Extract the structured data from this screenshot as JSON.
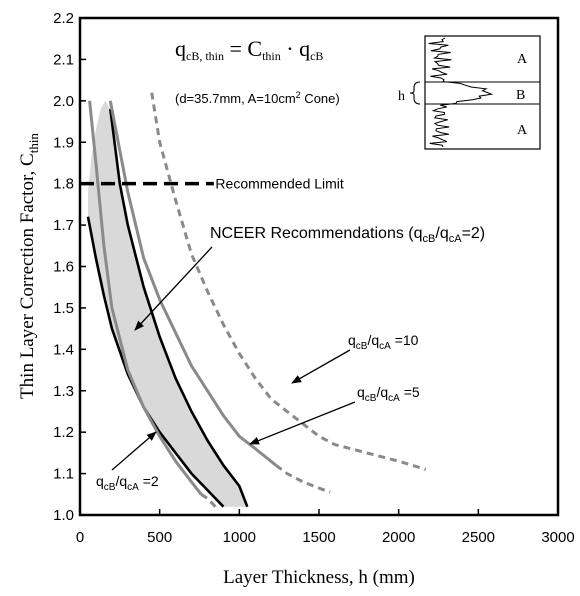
{
  "chart_data": {
    "type": "line",
    "xlabel": "Layer Thickness, h (mm)",
    "ylabel": {
      "main": "Thin Layer Correction Factor, C",
      "sub": "thin"
    },
    "xlim": [
      0,
      3000
    ],
    "ylim": [
      1.0,
      2.2
    ],
    "x_ticks": [
      "0",
      "500",
      "1000",
      "1500",
      "2000",
      "2500",
      "3000"
    ],
    "y_ticks": [
      "1.0",
      "1.1",
      "1.2",
      "1.3",
      "1.4",
      "1.5",
      "1.6",
      "1.7",
      "1.8",
      "1.9",
      "2.0",
      "2.1",
      "2.2"
    ],
    "grid": false,
    "equation": {
      "lhs": "q",
      "lhs_sub": "cB, thin",
      "eq": " = C",
      "c_sub": "thin",
      "dot": " · q",
      "rhs_sub": "cB"
    },
    "conditions": {
      "pre": "(d=35.7mm, A=10cm",
      "sup": "2",
      "post": " Cone)"
    },
    "inset": {
      "layer_top": "A",
      "layer_mid": "B",
      "layer_bottom": "A",
      "h_label": "h"
    },
    "recommended_limit": {
      "y": 1.8,
      "label": "Recommended Limit"
    },
    "nceer_label": "NCEER Recommendations (q",
    "nceer_sub1": "cB",
    "nceer_mid": "/q",
    "nceer_sub2": "cA",
    "nceer_post": "=2)",
    "series": [
      {
        "key": "r2_lower",
        "color": "#000000",
        "dashed": false,
        "points": [
          [
            50,
            1.72
          ],
          [
            100,
            1.62
          ],
          [
            150,
            1.53
          ],
          [
            200,
            1.45
          ],
          [
            300,
            1.34
          ],
          [
            400,
            1.26
          ],
          [
            500,
            1.2
          ],
          [
            600,
            1.15
          ],
          [
            700,
            1.1
          ],
          [
            800,
            1.06
          ],
          [
            900,
            1.02
          ]
        ]
      },
      {
        "key": "r2_upper",
        "color": "#000000",
        "dashed": false,
        "points": [
          [
            190,
            1.98
          ],
          [
            250,
            1.8
          ],
          [
            300,
            1.7
          ],
          [
            400,
            1.55
          ],
          [
            500,
            1.43
          ],
          [
            600,
            1.33
          ],
          [
            700,
            1.25
          ],
          [
            800,
            1.18
          ],
          [
            900,
            1.12
          ],
          [
            1000,
            1.07
          ],
          [
            1050,
            1.02
          ]
        ]
      },
      {
        "key": "r2_gray",
        "color": "#8a8a8a",
        "dashed": false,
        "points": [
          [
            60,
            2.0
          ],
          [
            100,
            1.85
          ],
          [
            150,
            1.65
          ],
          [
            200,
            1.5
          ],
          [
            300,
            1.35
          ],
          [
            400,
            1.26
          ],
          [
            500,
            1.19
          ],
          [
            600,
            1.13
          ],
          [
            700,
            1.08
          ],
          [
            760,
            1.05
          ]
        ]
      },
      {
        "key": "r5",
        "color": "#8a8a8a",
        "dashed": false,
        "points": [
          [
            190,
            2.0
          ],
          [
            250,
            1.88
          ],
          [
            300,
            1.78
          ],
          [
            400,
            1.62
          ],
          [
            500,
            1.52
          ],
          [
            600,
            1.44
          ],
          [
            700,
            1.36
          ],
          [
            800,
            1.3
          ],
          [
            900,
            1.24
          ],
          [
            1000,
            1.19
          ],
          [
            1100,
            1.16
          ],
          [
            1230,
            1.12
          ]
        ]
      },
      {
        "key": "r10",
        "color": "#8a8a8a",
        "dashed": true,
        "points": [
          [
            450,
            2.02
          ],
          [
            500,
            1.9
          ],
          [
            600,
            1.76
          ],
          [
            700,
            1.63
          ],
          [
            800,
            1.54
          ],
          [
            900,
            1.46
          ],
          [
            1000,
            1.39
          ],
          [
            1100,
            1.33
          ],
          [
            1200,
            1.28
          ],
          [
            1300,
            1.25
          ],
          [
            1400,
            1.22
          ],
          [
            1500,
            1.19
          ],
          [
            1600,
            1.17
          ],
          [
            1800,
            1.15
          ],
          [
            2000,
            1.13
          ],
          [
            2170,
            1.11
          ]
        ]
      },
      {
        "key": "r5_dashed_tail",
        "color": "#8a8a8a",
        "dashed": true,
        "points": [
          [
            1230,
            1.12
          ],
          [
            1300,
            1.1
          ],
          [
            1400,
            1.08
          ],
          [
            1500,
            1.065
          ],
          [
            1570,
            1.055
          ]
        ]
      },
      {
        "key": "r2_dashed_tail",
        "color": "#8a8a8a",
        "dashed": true,
        "points": [
          [
            760,
            1.05
          ],
          [
            800,
            1.04
          ],
          [
            850,
            1.02
          ]
        ]
      }
    ],
    "shaded_band": {
      "color": "#d9d9d9",
      "upper": [
        [
          50,
          1.78
        ],
        [
          70,
          1.86
        ],
        [
          100,
          1.93
        ],
        [
          130,
          1.98
        ],
        [
          160,
          2.0
        ],
        [
          190,
          1.98
        ],
        [
          250,
          1.8
        ],
        [
          300,
          1.7
        ],
        [
          400,
          1.55
        ],
        [
          500,
          1.43
        ],
        [
          600,
          1.33
        ],
        [
          700,
          1.25
        ],
        [
          800,
          1.18
        ],
        [
          900,
          1.12
        ],
        [
          1000,
          1.07
        ],
        [
          1050,
          1.02
        ]
      ],
      "lower": [
        [
          900,
          1.02
        ],
        [
          800,
          1.06
        ],
        [
          700,
          1.1
        ],
        [
          600,
          1.15
        ],
        [
          500,
          1.2
        ],
        [
          400,
          1.26
        ],
        [
          300,
          1.34
        ],
        [
          200,
          1.45
        ],
        [
          150,
          1.53
        ],
        [
          100,
          1.62
        ],
        [
          50,
          1.72
        ]
      ]
    },
    "annotations": [
      {
        "key": "r10",
        "pre": "q",
        "s1": "cB",
        "mid": "/q",
        "s2": "cA",
        "post": " =10"
      },
      {
        "key": "r5",
        "pre": "q",
        "s1": "cB",
        "mid": "/q",
        "s2": "cA",
        "post": " =5"
      },
      {
        "key": "r2",
        "pre": "q",
        "s1": "cB",
        "mid": "/q",
        "s2": "cA",
        "post": " =2"
      }
    ]
  }
}
